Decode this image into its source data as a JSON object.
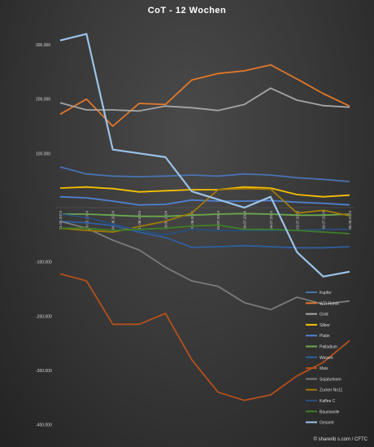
{
  "chart_data": {
    "type": "line",
    "title": "CoT - 12 Wochen",
    "x": [
      "21.05.2024",
      "28.05.2024",
      "04.06.2024",
      "11.06.2024",
      "18.06.2024",
      "25.06.2024",
      "02.07.2024",
      "09.07.2024",
      "16.07.2024",
      "23.07.2024",
      "30.07.2024",
      "06.08.2024"
    ],
    "ylim": [
      -420000,
      330000
    ],
    "yticks": [
      300000,
      200000,
      100000,
      -100000,
      -200000,
      -300000,
      -400000
    ],
    "ytick_labels": [
      "300.000",
      "200.000",
      "100.000",
      "-100.000",
      "-200.000",
      "-300.000",
      "-400.000"
    ],
    "grid": false,
    "legend_position": "right",
    "series": [
      {
        "name": "Kupfer",
        "color": "#4a72b0",
        "values": [
          75000,
          62000,
          58000,
          57000,
          58000,
          60000,
          58000,
          62000,
          60000,
          55000,
          52000,
          48000
        ]
      },
      {
        "name": "WTI Rohöl",
        "color": "#e0782a",
        "values": [
          172000,
          200000,
          150000,
          192000,
          190000,
          235000,
          247000,
          252000,
          263000,
          237000,
          210000,
          187000
        ]
      },
      {
        "name": "Gold",
        "color": "#a5a5a5",
        "values": [
          193000,
          180000,
          180000,
          178000,
          187000,
          184000,
          179000,
          190000,
          220000,
          198000,
          188000,
          185000
        ]
      },
      {
        "name": "Silber",
        "color": "#f5c000",
        "values": [
          36000,
          38000,
          35000,
          29000,
          31000,
          33000,
          33000,
          38000,
          36000,
          24000,
          20000,
          23000
        ]
      },
      {
        "name": "Platin",
        "color": "#4f80d0",
        "values": [
          20000,
          18000,
          12000,
          5000,
          6000,
          14000,
          12000,
          12000,
          13000,
          10000,
          8000,
          5000
        ]
      },
      {
        "name": "Palladium",
        "color": "#6aa84f",
        "values": [
          -12000,
          -12000,
          -14000,
          -16000,
          -16000,
          -14000,
          -12000,
          -11000,
          -12000,
          -14000,
          -14000,
          -12000
        ]
      },
      {
        "name": "Weizen",
        "color": "#2f5f9e",
        "values": [
          -25000,
          -28000,
          -33000,
          -45000,
          -55000,
          -73000,
          -72000,
          -70000,
          -72000,
          -74000,
          -74000,
          -72000
        ]
      },
      {
        "name": "Mais",
        "color": "#b5501c",
        "values": [
          -122000,
          -135000,
          -215000,
          -215000,
          -195000,
          -280000,
          -340000,
          -355000,
          -345000,
          -310000,
          -285000,
          -245000
        ]
      },
      {
        "name": "Sojabohnen",
        "color": "#7a7a7a",
        "values": [
          -25000,
          -38000,
          -60000,
          -78000,
          -110000,
          -135000,
          -145000,
          -175000,
          -188000,
          -165000,
          -178000,
          -172000
        ]
      },
      {
        "name": "Zucker No11",
        "color": "#a07a08",
        "values": [
          -38000,
          -42000,
          -45000,
          -35000,
          -25000,
          -10000,
          33000,
          35000,
          34000,
          -10000,
          -5000,
          -15000
        ]
      },
      {
        "name": "Kaffee C",
        "color": "#2a4d7a",
        "values": [
          -12000,
          -18000,
          -30000,
          -42000,
          -50000,
          -40000,
          -42000,
          -42000,
          -42000,
          -42000,
          -40000,
          -40000
        ]
      },
      {
        "name": "Baumwolle",
        "color": "#3f7d28",
        "values": [
          -38000,
          -38000,
          -42000,
          -40000,
          -38000,
          -34000,
          -32000,
          -40000,
          -40000,
          -42000,
          -45000,
          -48000
        ]
      },
      {
        "name": "Gesamt",
        "color": "#9cc3e8",
        "values": [
          308000,
          320000,
          107000,
          100000,
          93000,
          30000,
          15000,
          0,
          20000,
          -82000,
          -127000,
          -118000
        ]
      }
    ],
    "source": "© sharerib s.com / CFTC"
  }
}
